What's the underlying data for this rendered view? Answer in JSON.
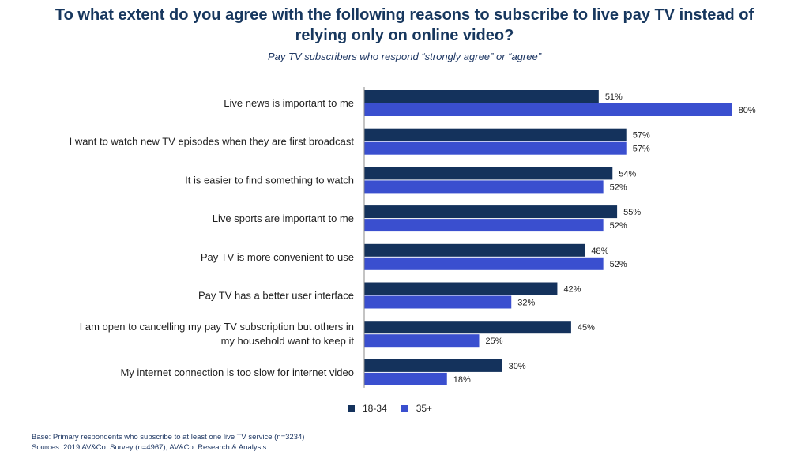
{
  "header": {
    "title_line1": "To what extent do you agree with the following reasons to subscribe to live pay TV instead of",
    "title_line2": "relying only on online video?",
    "subtitle": "Pay TV subscribers who respond “strongly agree” or “agree”"
  },
  "chart_data": {
    "type": "bar",
    "orientation": "horizontal",
    "title": "To what extent do you agree with the following reasons to subscribe to live pay TV instead of relying only on online video?",
    "subtitle": "Pay TV subscribers who respond “strongly agree” or “agree”",
    "categories": [
      [
        "Live news is important to me"
      ],
      [
        "I want to watch new TV episodes when they are first broadcast"
      ],
      [
        "It is easier to find something to watch"
      ],
      [
        "Live sports are important to me"
      ],
      [
        "Pay TV is more convenient to use"
      ],
      [
        "Pay TV has a better user interface"
      ],
      [
        "I am open to cancelling my pay TV subscription but others in",
        "my household want to keep it"
      ],
      [
        "My internet connection is too slow for internet video"
      ]
    ],
    "series": [
      {
        "name": "18-34",
        "color": "#14325c",
        "values": [
          51,
          57,
          54,
          55,
          48,
          42,
          45,
          30
        ]
      },
      {
        "name": "35+",
        "color": "#3a4fcf",
        "values": [
          80,
          57,
          52,
          52,
          52,
          32,
          25,
          18
        ]
      }
    ],
    "value_suffix": "%",
    "xlim": [
      0,
      100
    ],
    "legend_position": "bottom-center"
  },
  "footer": {
    "base": "Base: Primary respondents who subscribe to at least one live TV service (n=3234)",
    "sources": "Sources: 2019 AV&Co. Survey (n=4967), AV&Co. Research & Analysis"
  }
}
